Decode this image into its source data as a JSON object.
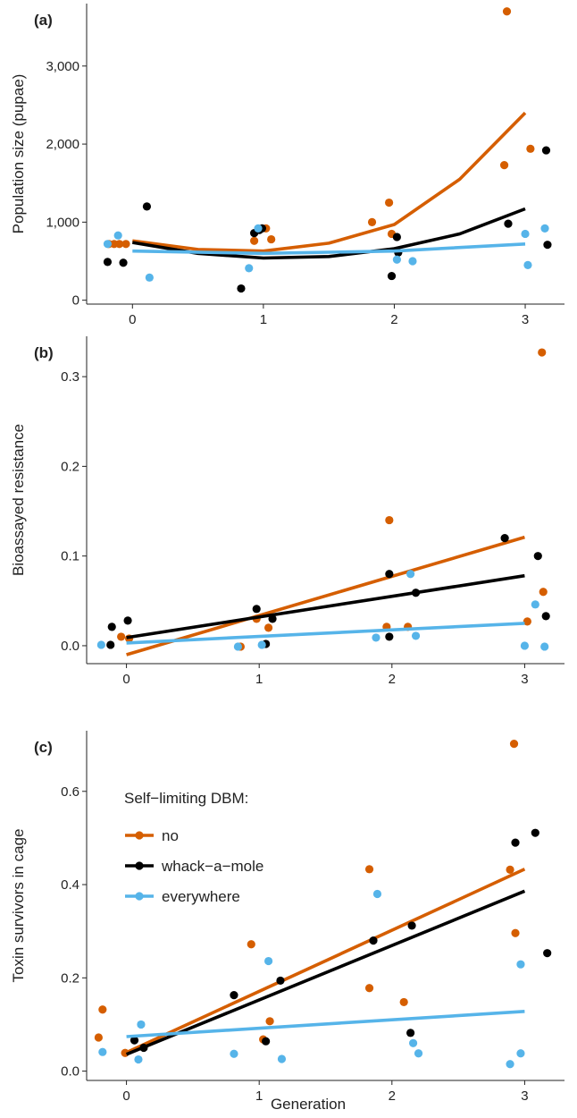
{
  "colors": {
    "no": "#D55E00",
    "whack-a-mole": "#000000",
    "everywhere": "#56B4E9"
  },
  "legend": {
    "title": "Self−limiting DBM:",
    "entries": [
      {
        "key": "no",
        "label": "no"
      },
      {
        "key": "whack-a-mole",
        "label": "whack−a−mole"
      },
      {
        "key": "everywhere",
        "label": "everywhere"
      }
    ],
    "placement": "top-left of panel (c)"
  },
  "xlabel": "Generation",
  "chart_data": [
    {
      "type": "scatter",
      "panel_label": "(a)",
      "xlabel": "",
      "ylabel": "Population size (pupae)",
      "xlim": [
        -0.35,
        3.3
      ],
      "ylim": [
        -50,
        3800
      ],
      "x_ticks": [
        0,
        1,
        2,
        3
      ],
      "y_ticks": [
        0,
        1000,
        2000,
        3000
      ],
      "y_tick_labels": [
        "0",
        "1,000",
        "2,000",
        "3,000"
      ],
      "grid": false,
      "series": [
        {
          "key": "no",
          "points": [
            [
              -0.18,
              720
            ],
            [
              -0.14,
              720
            ],
            [
              -0.1,
              720
            ],
            [
              -0.05,
              720
            ],
            [
              0.93,
              760
            ],
            [
              1.02,
              920
            ],
            [
              1.06,
              780
            ],
            [
              1.83,
              1000
            ],
            [
              1.96,
              1250
            ],
            [
              1.98,
              850
            ],
            [
              2.84,
              1730
            ],
            [
              2.86,
              3700
            ],
            [
              3.04,
              1940
            ]
          ],
          "fit": [
            [
              0,
              760
            ],
            [
              0.5,
              650
            ],
            [
              1,
              630
            ],
            [
              1.5,
              730
            ],
            [
              2,
              970
            ],
            [
              2.5,
              1550
            ],
            [
              3,
              2400
            ]
          ]
        },
        {
          "key": "whack-a-mole",
          "points": [
            [
              -0.19,
              490
            ],
            [
              -0.07,
              480
            ],
            [
              0.11,
              1200
            ],
            [
              0.83,
              150
            ],
            [
              0.93,
              860
            ],
            [
              0.97,
              900
            ],
            [
              0.99,
              920
            ],
            [
              1.98,
              310
            ],
            [
              2.02,
              810
            ],
            [
              2.03,
              610
            ],
            [
              2.87,
              980
            ],
            [
              3.16,
              1920
            ],
            [
              3.17,
              710
            ]
          ],
          "fit": [
            [
              0,
              740
            ],
            [
              0.5,
              600
            ],
            [
              1,
              540
            ],
            [
              1.5,
              560
            ],
            [
              2,
              660
            ],
            [
              2.5,
              850
            ],
            [
              3,
              1170
            ]
          ]
        },
        {
          "key": "everywhere",
          "points": [
            [
              -0.19,
              720
            ],
            [
              -0.11,
              830
            ],
            [
              0.13,
              290
            ],
            [
              0.89,
              410
            ],
            [
              0.96,
              920
            ],
            [
              2.02,
              520
            ],
            [
              2.14,
              500
            ],
            [
              3.0,
              850
            ],
            [
              3.02,
              450
            ],
            [
              3.15,
              920
            ]
          ],
          "fit": [
            [
              0,
              630
            ],
            [
              1,
              600
            ],
            [
              2,
              630
            ],
            [
              3,
              720
            ]
          ]
        }
      ]
    },
    {
      "type": "scatter",
      "panel_label": "(b)",
      "xlabel": "",
      "ylabel": "Bioassayed resistance",
      "xlim": [
        -0.3,
        3.3
      ],
      "ylim": [
        -0.02,
        0.345
      ],
      "x_ticks": [
        0,
        1,
        2,
        3
      ],
      "y_ticks": [
        0,
        0.1,
        0.2,
        0.3
      ],
      "y_tick_labels": [
        "0.0",
        "0.1",
        "0.2",
        "0.3"
      ],
      "grid": false,
      "series": [
        {
          "key": "no",
          "points": [
            [
              -0.04,
              0.01
            ],
            [
              0.02,
              0.008
            ],
            [
              0.86,
              -0.001
            ],
            [
              0.98,
              0.03
            ],
            [
              1.07,
              0.02
            ],
            [
              1.96,
              0.021
            ],
            [
              1.98,
              0.14
            ],
            [
              2.12,
              0.021
            ],
            [
              3.02,
              0.027
            ],
            [
              3.13,
              0.327
            ],
            [
              3.14,
              0.06
            ]
          ],
          "fit": [
            [
              0,
              -0.01
            ],
            [
              3,
              0.121
            ]
          ]
        },
        {
          "key": "whack-a-mole",
          "points": [
            [
              -0.12,
              0.001
            ],
            [
              -0.11,
              0.021
            ],
            [
              0.01,
              0.028
            ],
            [
              0.98,
              0.041
            ],
            [
              1.05,
              0.002
            ],
            [
              1.1,
              0.03
            ],
            [
              1.98,
              0.01
            ],
            [
              1.98,
              0.08
            ],
            [
              2.18,
              0.059
            ],
            [
              2.85,
              0.12
            ],
            [
              3.1,
              0.1
            ],
            [
              3.16,
              0.033
            ]
          ],
          "fit": [
            [
              0,
              0.009
            ],
            [
              3,
              0.078
            ]
          ]
        },
        {
          "key": "everywhere",
          "points": [
            [
              -0.19,
              0.001
            ],
            [
              0.84,
              -0.001
            ],
            [
              1.02,
              0.001
            ],
            [
              1.88,
              0.009
            ],
            [
              2.14,
              0.08
            ],
            [
              2.18,
              0.011
            ],
            [
              3.0,
              0.0
            ],
            [
              3.08,
              0.046
            ],
            [
              3.15,
              -0.001
            ]
          ],
          "fit": [
            [
              0,
              0.003
            ],
            [
              3,
              0.025
            ]
          ]
        }
      ]
    },
    {
      "type": "scatter",
      "panel_label": "(c)",
      "xlabel": "Generation",
      "ylabel": "Toxin survivors in cage",
      "xlim": [
        -0.3,
        3.3
      ],
      "ylim": [
        -0.02,
        0.73
      ],
      "x_ticks": [
        0,
        1,
        2,
        3
      ],
      "y_ticks": [
        0,
        0.2,
        0.4,
        0.6
      ],
      "y_tick_labels": [
        "0.0",
        "0.2",
        "0.4",
        "0.6"
      ],
      "grid": false,
      "series": [
        {
          "key": "no",
          "points": [
            [
              -0.21,
              0.072
            ],
            [
              -0.18,
              0.132
            ],
            [
              -0.01,
              0.039
            ],
            [
              0.94,
              0.272
            ],
            [
              1.03,
              0.068
            ],
            [
              1.08,
              0.107
            ],
            [
              1.83,
              0.433
            ],
            [
              1.83,
              0.178
            ],
            [
              2.09,
              0.148
            ],
            [
              2.89,
              0.432
            ],
            [
              2.92,
              0.702
            ],
            [
              2.93,
              0.296
            ]
          ],
          "fit": [
            [
              0,
              0.04
            ],
            [
              3,
              0.433
            ]
          ]
        },
        {
          "key": "whack-a-mole",
          "points": [
            [
              0.06,
              0.066
            ],
            [
              0.13,
              0.05
            ],
            [
              0.81,
              0.163
            ],
            [
              1.05,
              0.064
            ],
            [
              1.16,
              0.194
            ],
            [
              1.86,
              0.28
            ],
            [
              2.14,
              0.082
            ],
            [
              2.15,
              0.312
            ],
            [
              2.93,
              0.49
            ],
            [
              3.08,
              0.511
            ],
            [
              3.17,
              0.253
            ]
          ],
          "fit": [
            [
              0,
              0.036
            ],
            [
              3,
              0.386
            ]
          ]
        },
        {
          "key": "everywhere",
          "points": [
            [
              -0.18,
              0.041
            ],
            [
              0.09,
              0.025
            ],
            [
              0.11,
              0.1
            ],
            [
              1.07,
              0.236
            ],
            [
              1.17,
              0.026
            ],
            [
              0.81,
              0.037
            ],
            [
              1.89,
              0.38
            ],
            [
              2.16,
              0.06
            ],
            [
              2.2,
              0.038
            ],
            [
              2.89,
              0.015
            ],
            [
              2.97,
              0.229
            ],
            [
              2.97,
              0.038
            ]
          ],
          "fit": [
            [
              0,
              0.074
            ],
            [
              3,
              0.128
            ]
          ]
        }
      ]
    }
  ]
}
